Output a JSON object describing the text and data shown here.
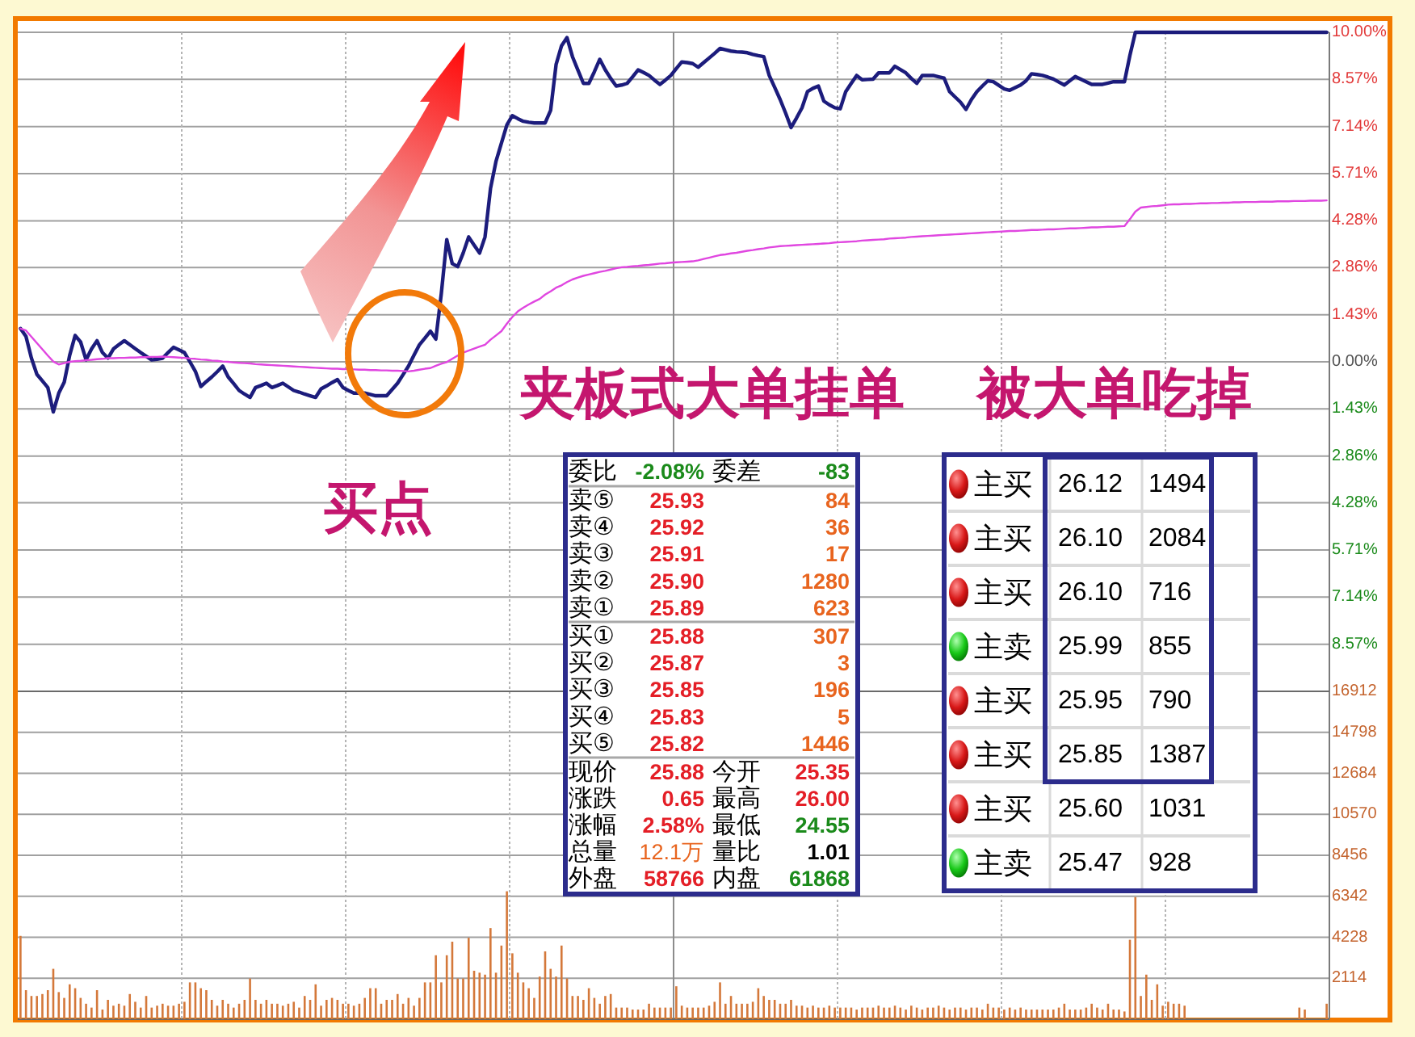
{
  "chart_data": [
    {
      "type": "line",
      "categories": [
        null,
        null,
        null,
        null,
        null,
        null,
        null,
        null,
        null,
        null,
        null,
        null,
        null,
        null,
        null,
        null,
        null,
        null,
        null,
        null,
        null,
        null,
        null,
        null,
        null,
        null,
        null,
        null,
        null,
        null,
        null,
        null,
        null,
        null,
        null,
        null,
        null,
        null,
        null,
        null,
        null,
        null,
        null,
        null,
        null,
        null,
        null,
        null,
        null,
        null,
        null,
        null,
        null,
        null,
        null,
        null,
        null,
        null,
        null,
        null,
        null,
        null,
        null,
        null,
        null,
        null,
        null,
        null,
        null,
        null,
        null,
        null,
        null,
        null,
        null,
        null,
        null,
        null,
        null,
        null,
        null,
        null,
        null,
        null,
        null,
        null,
        null,
        null,
        null,
        null,
        null,
        null,
        null,
        null,
        null,
        null,
        null,
        null,
        null,
        null,
        null,
        null,
        null,
        null,
        null,
        null,
        null,
        null,
        null,
        null,
        null,
        null,
        null,
        null,
        null,
        null,
        null,
        null,
        null,
        null,
        null,
        null,
        null,
        null,
        null,
        null,
        null,
        null,
        null,
        null,
        null,
        null,
        null,
        null,
        null,
        null,
        null,
        null,
        null,
        null,
        null,
        null,
        null,
        null,
        null,
        null,
        null,
        null,
        null,
        null,
        null,
        null,
        null,
        null,
        null,
        null,
        null,
        null,
        null,
        null,
        null,
        null,
        null,
        null,
        null,
        null,
        null,
        null,
        null,
        null,
        null,
        null,
        null,
        null,
        null,
        null,
        null,
        null,
        null,
        null,
        null,
        null,
        null,
        null,
        null,
        null,
        null,
        null,
        null,
        null,
        null,
        null,
        null,
        null,
        null,
        null,
        null,
        null,
        null,
        null,
        null,
        null,
        null,
        null,
        null,
        null,
        null,
        null,
        null,
        null,
        null,
        null,
        null,
        null,
        null,
        null,
        null,
        null,
        null,
        null,
        null,
        null,
        null,
        null,
        null,
        null,
        null,
        null,
        null,
        null,
        null,
        null,
        null,
        null,
        null,
        null,
        null,
        null,
        null,
        null
      ],
      "ylim": [
        -10,
        10
      ],
      "yticks": [
        {
          "value": -8.57,
          "label": "8.57%"
        },
        {
          "value": -7.14,
          "label": "7.14%"
        },
        {
          "value": -5.71,
          "label": "5.71%"
        },
        {
          "value": -4.28,
          "label": "4.28%"
        },
        {
          "value": -2.86,
          "label": "2.86%"
        },
        {
          "value": -1.43,
          "label": "1.43%"
        },
        {
          "value": 0,
          "label": "0.00%"
        },
        {
          "value": 1.43,
          "label": "1.43%"
        },
        {
          "value": 2.86,
          "label": "2.86%"
        },
        {
          "value": 4.28,
          "label": "4.28%"
        },
        {
          "value": 5.71,
          "label": "5.71%"
        },
        {
          "value": 7.14,
          "label": "7.14%"
        },
        {
          "value": 8.57,
          "label": "8.57%"
        },
        {
          "value": 10,
          "label": "10.00%"
        }
      ],
      "grid": true,
      "tick_labels": "y",
      "series": [
        {
          "color": "#1c1c7c",
          "values": [
            1.01,
            0.77,
            0.11,
            -0.38,
            -0.58,
            -0.78,
            -1.52,
            -0.95,
            -0.62,
            0.2,
            0.8,
            0.6,
            0.06,
            0.39,
            0.64,
            0.28,
            0.11,
            0.39,
            0.52,
            0.64,
            0.52,
            0.4,
            0.28,
            0.17,
            0.06,
            0.08,
            0.11,
            0.28,
            0.44,
            0.36,
            0.28,
            0,
            -0.29,
            -0.75,
            -0.6,
            -0.46,
            -0.3,
            -0.13,
            -0.46,
            -0.66,
            -0.87,
            -0.98,
            -1.08,
            -0.78,
            -0.72,
            -0.65,
            -0.78,
            -0.72,
            -0.65,
            -0.76,
            -0.87,
            -0.92,
            -0.98,
            -1.03,
            -1.08,
            -0.82,
            -0.73,
            -0.63,
            -0.54,
            -0.78,
            -0.87,
            -0.95,
            -0.95,
            -0.95,
            -0.99,
            -1.03,
            -1.03,
            -1.03,
            -0.84,
            -0.65,
            -0.39,
            -0.13,
            0.2,
            0.52,
            0.72,
            0.93,
            0.69,
            2.07,
            3.71,
            2.98,
            2.89,
            3.3,
            3.79,
            3.54,
            3.3,
            3.79,
            5.26,
            6.08,
            6.64,
            7.19,
            7.47,
            7.38,
            7.3,
            7.27,
            7.25,
            7.25,
            7.25,
            7.63,
            9.02,
            9.59,
            9.84,
            9.26,
            8.85,
            8.45,
            8.45,
            8.8,
            9.18,
            8.86,
            8.6,
            8.37,
            8.4,
            8.45,
            8.65,
            8.86,
            8.78,
            8.69,
            8.55,
            8.42,
            8.55,
            8.69,
            8.9,
            9.1,
            9.08,
            9.05,
            8.94,
            9.08,
            9.22,
            9.36,
            9.51,
            9.47,
            9.43,
            9.41,
            9.4,
            9.38,
            9.33,
            9.29,
            9.26,
            8.69,
            8.33,
            7.96,
            7.55,
            7.11,
            7.4,
            7.71,
            8.2,
            8.3,
            8.37,
            7.91,
            7.8,
            7.71,
            7.68,
            8.2,
            8.45,
            8.69,
            8.56,
            8.57,
            8.58,
            8.77,
            8.77,
            8.77,
            8.97,
            8.87,
            8.77,
            8.6,
            8.45,
            8.69,
            8.69,
            8.69,
            8.65,
            8.61,
            8.2,
            8.04,
            7.88,
            7.66,
            7.96,
            8.2,
            8.37,
            8.53,
            8.5,
            8.39,
            8.28,
            8.24,
            8.32,
            8.4,
            8.53,
            8.74,
            8.72,
            8.69,
            8.64,
            8.58,
            8.49,
            8.4,
            8.53,
            8.66,
            8.58,
            8.5,
            8.42,
            8.42,
            8.42,
            8.46,
            8.5,
            8.5,
            8.5,
            9.3,
            10,
            10,
            10,
            10,
            10,
            10,
            10,
            10,
            10,
            10,
            10,
            10,
            10,
            10,
            10,
            10,
            10,
            10,
            10,
            10,
            10,
            10,
            10,
            10,
            10,
            10,
            10,
            10,
            10,
            10,
            10,
            10,
            10,
            10,
            10,
            10
          ]
        },
        {
          "color": "#e046e0",
          "values": [
            1.01,
            0.95,
            0.76,
            0.57,
            0.38,
            0.19,
            0.01,
            -0.08,
            -0.04,
            0,
            0.02,
            0.03,
            0.05,
            0.06,
            0.08,
            0.09,
            0.11,
            0.11,
            0.12,
            0.12,
            0.13,
            0.13,
            0.14,
            0.14,
            0.15,
            0.15,
            0.16,
            0.15,
            0.14,
            0.13,
            0.12,
            0.1,
            0.09,
            0.07,
            0.06,
            0.04,
            0.03,
            0.01,
            0,
            -0.02,
            -0.03,
            -0.04,
            -0.05,
            -0.07,
            -0.08,
            -0.09,
            -0.1,
            -0.11,
            -0.12,
            -0.13,
            -0.14,
            -0.15,
            -0.16,
            -0.17,
            -0.18,
            -0.19,
            -0.2,
            -0.21,
            -0.21,
            -0.22,
            -0.22,
            -0.23,
            -0.24,
            -0.24,
            -0.25,
            -0.25,
            -0.26,
            -0.26,
            -0.27,
            -0.27,
            -0.28,
            -0.29,
            -0.27,
            -0.24,
            -0.21,
            -0.19,
            -0.12,
            -0.06,
            -0.01,
            0.09,
            0.19,
            0.28,
            0.34,
            0.4,
            0.46,
            0.52,
            0.67,
            0.8,
            0.93,
            1.16,
            1.36,
            1.53,
            1.64,
            1.74,
            1.83,
            1.91,
            2.04,
            2.14,
            2.25,
            2.32,
            2.42,
            2.5,
            2.56,
            2.61,
            2.65,
            2.69,
            2.73,
            2.76,
            2.8,
            2.84,
            2.87,
            2.88,
            2.9,
            2.91,
            2.93,
            2.94,
            2.96,
            2.98,
            2.99,
            3.01,
            3.02,
            3.03,
            3.04,
            3.05,
            3.08,
            3.12,
            3.16,
            3.2,
            3.24,
            3.26,
            3.29,
            3.31,
            3.34,
            3.37,
            3.39,
            3.42,
            3.44,
            3.47,
            3.49,
            3.51,
            3.52,
            3.53,
            3.54,
            3.55,
            3.56,
            3.57,
            3.58,
            3.59,
            3.6,
            3.62,
            3.63,
            3.64,
            3.65,
            3.66,
            3.68,
            3.69,
            3.7,
            3.71,
            3.72,
            3.74,
            3.75,
            3.76,
            3.77,
            3.79,
            3.8,
            3.81,
            3.82,
            3.83,
            3.84,
            3.85,
            3.86,
            3.87,
            3.88,
            3.89,
            3.9,
            3.91,
            3.92,
            3.93,
            3.94,
            3.95,
            3.96,
            3.97,
            3.97,
            3.98,
            3.99,
            4,
            4,
            4.01,
            4.02,
            4.02,
            4.03,
            4.04,
            4.05,
            4.05,
            4.06,
            4.07,
            4.08,
            4.08,
            4.09,
            4.1,
            4.1,
            4.11,
            4.12,
            4.33,
            4.56,
            4.68,
            4.7,
            4.72,
            4.73,
            4.75,
            4.77,
            4.78,
            4.78,
            4.79,
            4.79,
            4.8,
            4.81,
            4.81,
            4.82,
            4.82,
            4.83,
            4.83,
            4.84,
            4.84,
            4.85,
            4.85,
            4.85,
            4.86,
            4.86,
            4.86,
            4.87,
            4.87,
            4.87,
            4.88,
            4.88,
            4.88,
            4.89,
            4.89,
            4.89,
            4.9
          ]
        }
      ],
      "annotations": [
        "夹板式大单挂单",
        "被大单吃掉",
        "买点",
        "委比",
        "-2.08%",
        "委差",
        "-83",
        "卖⑤",
        "25.93",
        "84",
        "卖④",
        "25.92",
        "36",
        "卖③",
        "25.91",
        "17",
        "卖②",
        "25.90",
        "1280",
        "卖①",
        "25.89",
        "623",
        "买①",
        "25.88",
        "307",
        "买②",
        "25.87",
        "3",
        "买③",
        "25.85",
        "196",
        "买④",
        "25.83",
        "5",
        "买⑤",
        "25.82",
        "1446",
        "现价",
        "25.88",
        "今开",
        "25.35",
        "涨跌",
        "0.65",
        "最高",
        "26.00",
        "涨幅",
        "2.58%",
        "最低",
        "24.55",
        "总量",
        "12.1万",
        "量比",
        "1.01",
        "外盘",
        "58766",
        "内盘",
        "61868",
        "主买",
        "26.12",
        "1494",
        "主买",
        "26.10",
        "2084",
        "主买",
        "26.10",
        "716",
        "主卖",
        "25.99",
        "855",
        "主买",
        "25.95",
        "790",
        "主买",
        "25.85",
        "1387",
        "主买",
        "25.60",
        "1031",
        "主卖",
        "25.47",
        "928"
      ]
    },
    {
      "type": "bar",
      "color": "#d4783a",
      "categories": [
        null,
        null,
        null,
        null,
        null,
        null,
        null,
        null,
        null,
        null,
        null,
        null,
        null,
        null,
        null,
        null,
        null,
        null,
        null,
        null,
        null,
        null,
        null,
        null,
        null,
        null,
        null,
        null,
        null,
        null,
        null,
        null,
        null,
        null,
        null,
        null,
        null,
        null,
        null,
        null,
        null,
        null,
        null,
        null,
        null,
        null,
        null,
        null,
        null,
        null,
        null,
        null,
        null,
        null,
        null,
        null,
        null,
        null,
        null,
        null,
        null,
        null,
        null,
        null,
        null,
        null,
        null,
        null,
        null,
        null,
        null,
        null,
        null,
        null,
        null,
        null,
        null,
        null,
        null,
        null,
        null,
        null,
        null,
        null,
        null,
        null,
        null,
        null,
        null,
        null,
        null,
        null,
        null,
        null,
        null,
        null,
        null,
        null,
        null,
        null,
        null,
        null,
        null,
        null,
        null,
        null,
        null,
        null,
        null,
        null,
        null,
        null,
        null,
        null,
        null,
        null,
        null,
        null,
        null,
        null,
        null,
        null,
        null,
        null,
        null,
        null,
        null,
        null,
        null,
        null,
        null,
        null,
        null,
        null,
        null,
        null,
        null,
        null,
        null,
        null,
        null,
        null,
        null,
        null,
        null,
        null,
        null,
        null,
        null,
        null,
        null,
        null,
        null,
        null,
        null,
        null,
        null,
        null,
        null,
        null,
        null,
        null,
        null,
        null,
        null,
        null,
        null,
        null,
        null,
        null,
        null,
        null,
        null,
        null,
        null,
        null,
        null,
        null,
        null,
        null,
        null,
        null,
        null,
        null,
        null,
        null,
        null,
        null,
        null,
        null,
        null,
        null,
        null,
        null,
        null,
        null,
        null,
        null,
        null,
        null,
        null,
        null,
        null,
        null,
        null,
        null,
        null,
        null,
        null,
        null,
        null,
        null,
        null,
        null,
        null,
        null,
        null,
        null,
        null,
        null,
        null,
        null,
        null,
        null,
        null,
        null,
        null,
        null,
        null,
        null,
        null,
        null,
        null,
        null,
        null,
        null,
        null,
        null,
        null,
        null
      ],
      "ylim": [
        0,
        16912
      ],
      "yticks": [
        2114,
        4228,
        6342,
        8456,
        10570,
        12684,
        14798,
        16912
      ],
      "grid": true,
      "tick_labels": "y",
      "values": [
        4300,
        1500,
        1200,
        1200,
        1300,
        1500,
        2600,
        1400,
        1100,
        1800,
        1600,
        1100,
        800,
        600,
        1500,
        500,
        1000,
        700,
        800,
        700,
        1300,
        900,
        600,
        1200,
        600,
        700,
        800,
        700,
        700,
        800,
        900,
        1900,
        1900,
        1600,
        1500,
        1000,
        700,
        1000,
        800,
        600,
        800,
        1000,
        2100,
        1000,
        800,
        1000,
        800,
        800,
        700,
        800,
        900,
        600,
        1200,
        1000,
        1800,
        700,
        1000,
        1100,
        1000,
        800,
        800,
        700,
        800,
        1100,
        1600,
        1600,
        800,
        1000,
        1000,
        1300,
        800,
        1100,
        700,
        1100,
        1900,
        1900,
        3300,
        1900,
        3300,
        4000,
        2100,
        2100,
        4200,
        2500,
        2400,
        2300,
        4700,
        2400,
        3800,
        6600,
        3400,
        2400,
        1900,
        1600,
        1100,
        2200,
        3500,
        2600,
        2200,
        3800,
        2100,
        1200,
        1200,
        1000,
        1600,
        1100,
        800,
        1200,
        1300,
        600,
        600,
        600,
        500,
        500,
        500,
        800,
        600,
        600,
        600,
        600,
        1700,
        700,
        600,
        600,
        600,
        600,
        700,
        900,
        1900,
        800,
        1200,
        800,
        800,
        800,
        900,
        1600,
        1200,
        1000,
        1000,
        800,
        800,
        1000,
        700,
        700,
        600,
        700,
        600,
        600,
        700,
        600,
        600,
        600,
        600,
        500,
        600,
        600,
        600,
        700,
        600,
        600,
        700,
        600,
        500,
        700,
        600,
        500,
        600,
        600,
        700,
        600,
        500,
        600,
        600,
        500,
        600,
        600,
        500,
        800,
        600,
        600,
        500,
        600,
        500,
        600,
        500,
        500,
        500,
        500,
        500,
        500,
        600,
        800,
        500,
        500,
        500,
        600,
        800,
        600,
        500,
        800,
        500,
        500,
        400,
        4100,
        6300,
        1200,
        2300,
        1000,
        1800,
        700,
        900,
        800,
        800,
        700,
        null,
        null,
        null,
        null,
        null,
        null,
        null,
        null,
        null,
        null,
        null,
        null,
        null,
        null,
        null,
        null,
        null,
        null,
        null,
        null,
        600,
        500,
        null,
        null,
        null,
        800
      ]
    }
  ]
}
